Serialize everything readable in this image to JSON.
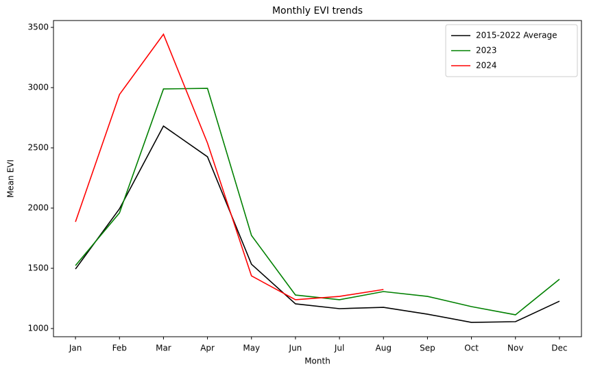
{
  "chart_data": {
    "type": "line",
    "title": "Monthly EVI trends",
    "x_label": "Month",
    "y_label": "Mean EVI",
    "categories": [
      "Jan",
      "Feb",
      "Mar",
      "Apr",
      "May",
      "Jun",
      "Jul",
      "Aug",
      "Sep",
      "Oct",
      "Nov",
      "Dec"
    ],
    "series": [
      {
        "name": "2015-2022 Average",
        "color": "#000000",
        "values": [
          1494,
          1994,
          2681,
          2426,
          1534,
          1205,
          1165,
          1176,
          1119,
          1051,
          1057,
          1227
        ]
      },
      {
        "name": "2023",
        "color": "#008000",
        "values": [
          1523,
          1960,
          2989,
          2994,
          1773,
          1278,
          1239,
          1307,
          1267,
          1182,
          1114,
          1409
        ]
      },
      {
        "name": "2024",
        "color": "#ff0000",
        "values": [
          1886,
          2943,
          3443,
          2540,
          1437,
          1239,
          1267,
          1324,
          null,
          null,
          null,
          null
        ]
      }
    ],
    "ylim": [
      932,
      3557
    ],
    "yticks": [
      1000,
      1500,
      2000,
      2500,
      3000,
      3500
    ],
    "grid": false,
    "legend": "upper right"
  }
}
